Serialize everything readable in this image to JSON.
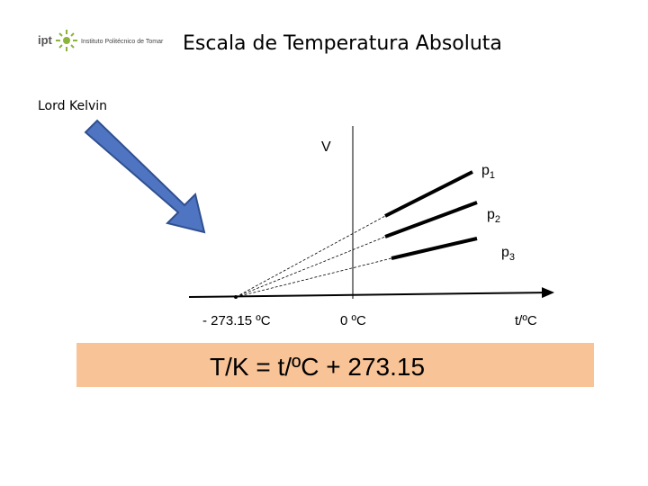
{
  "header": {
    "logo_short": "ipt",
    "logo_name": "Instituto Politécnico de Tomar",
    "title": "Escala de Temperatura Absoluta"
  },
  "author": "Lord Kelvin",
  "diagram": {
    "y_axis": "V",
    "x_axis": "t/ºC",
    "curves": [
      {
        "base": "p",
        "sub": "1"
      },
      {
        "base": "p",
        "sub": "2"
      },
      {
        "base": "p",
        "sub": "3"
      }
    ],
    "x_marks": [
      "- 273.15 ºC",
      "0 ºC"
    ]
  },
  "formula": "T/K = t/ºC + 273.15"
}
